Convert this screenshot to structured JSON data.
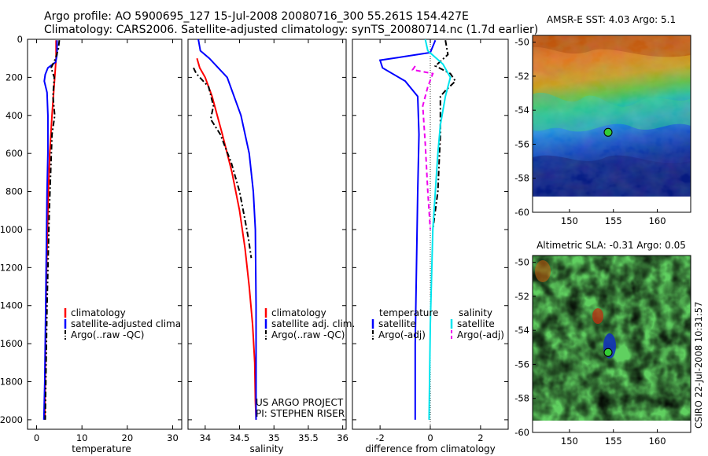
{
  "figure": {
    "title_line1": "Argo profile: AO 5900695_127 15-Jul-2008 20080716_300 55.261S 154.427E",
    "title_line2": "Climatology: CARS2006. Satellite-adjusted climatology: synTS_20080714.nc (1.7d earlier)",
    "credit_line1": "US ARGO PROJECT",
    "credit_line2": "PI: STEPHEN RISER",
    "timestamp": "CSIRO 22-Jul-2008 10:31:57"
  },
  "colors": {
    "climatology": "#ff0000",
    "satellite": "#0000ff",
    "argo": "#000000",
    "satellite_diff": "#00e5ee",
    "argo_adj": "#ee00ee",
    "marker": "#33cc33"
  },
  "chart_data": [
    {
      "type": "line",
      "id": "temperature",
      "xlabel": "temperature",
      "ylabel": "",
      "xlim": [
        -2,
        32
      ],
      "ylim": [
        2050,
        0
      ],
      "xticks": [
        0,
        10,
        20,
        30
      ],
      "yticks": [
        0,
        200,
        400,
        600,
        800,
        1000,
        1200,
        1400,
        1600,
        1800,
        2000
      ],
      "legend": [
        "climatology",
        "satellite-adjusted climatology",
        "Argo(..raw -QC)"
      ],
      "series": [
        {
          "name": "climatology",
          "style": "solid",
          "color": "#ff0000",
          "x": [
            4.3,
            4.3,
            4.0,
            3.4,
            2.9,
            2.6,
            2.4,
            2.2,
            2.0,
            1.9,
            1.8
          ],
          "y": [
            5,
            100,
            200,
            400,
            600,
            800,
            1000,
            1200,
            1500,
            1800,
            2000
          ]
        },
        {
          "name": "satellite-adjusted climatology",
          "style": "solid",
          "color": "#0000ff",
          "x": [
            4.5,
            4.5,
            4.2,
            2.5,
            1.9,
            1.7,
            2.3,
            2.5,
            2.5,
            2.3,
            2.2,
            2.0,
            1.8,
            1.6
          ],
          "y": [
            5,
            80,
            120,
            150,
            185,
            220,
            280,
            400,
            600,
            800,
            1000,
            1400,
            1800,
            2000
          ]
        },
        {
          "name": "Argo(..raw -QC)",
          "style": "dashdot",
          "color": "#000000",
          "x": [
            5.0,
            4.8,
            4.2,
            3.2,
            3.9,
            3.6,
            4.0,
            3.4,
            3.1,
            2.8,
            2.6,
            2.3,
            2.1,
            1.9
          ],
          "y": [
            5,
            50,
            100,
            150,
            200,
            300,
            400,
            500,
            700,
            900,
            1100,
            1400,
            1700,
            2000
          ]
        }
      ]
    },
    {
      "type": "line",
      "id": "salinity",
      "xlabel": "salinity",
      "ylabel": "",
      "xlim": [
        33.75,
        36.05
      ],
      "ylim": [
        2050,
        0
      ],
      "xticks": [
        34,
        34.5,
        35,
        35.5,
        36
      ],
      "xtick_labels": [
        "34",
        "34.5",
        "35",
        "35.5",
        "36"
      ],
      "legend": [
        "climatology",
        "satellite adj. clim.",
        "Argo(..raw -QC)"
      ],
      "series": [
        {
          "name": "climatology",
          "style": "solid",
          "color": "#ff0000",
          "x": [
            33.88,
            33.92,
            34.0,
            34.1,
            34.25,
            34.39,
            34.5,
            34.58,
            34.64,
            34.69,
            34.72,
            34.73,
            34.74
          ],
          "y": [
            100,
            150,
            200,
            300,
            500,
            700,
            900,
            1100,
            1300,
            1500,
            1700,
            1900,
            2000
          ]
        },
        {
          "name": "satellite adj. clim.",
          "style": "solid",
          "color": "#0000ff",
          "x": [
            33.9,
            33.93,
            34.06,
            34.32,
            34.52,
            34.64,
            34.7,
            34.73,
            34.74,
            34.74,
            34.74
          ],
          "y": [
            0,
            60,
            100,
            200,
            400,
            600,
            800,
            1000,
            1400,
            1800,
            2000
          ]
        },
        {
          "name": "Argo(..raw -QC)",
          "style": "dashdot",
          "color": "#000000",
          "x": [
            33.83,
            33.87,
            34.05,
            34.12,
            34.08,
            34.22,
            34.38,
            34.5,
            34.58,
            34.63,
            34.67
          ],
          "y": [
            150,
            180,
            250,
            350,
            420,
            500,
            650,
            800,
            950,
            1050,
            1150
          ]
        }
      ]
    },
    {
      "type": "line",
      "id": "difference",
      "xlabel": "difference from climatology",
      "ylabel": "",
      "xlim": [
        -3.1,
        3.1
      ],
      "ylim": [
        2050,
        0
      ],
      "xticks": [
        -2,
        0,
        2
      ],
      "legend_headers": [
        "temperature",
        "salinity"
      ],
      "legend": [
        "satellite",
        "Argo(-adj)",
        "satellite",
        "Argo(-adj)"
      ],
      "zero_line": true,
      "series": [
        {
          "name": "temperature satellite",
          "style": "solid",
          "color": "#0000ff",
          "x": [
            0.2,
            0.0,
            -1.0,
            -2.0,
            -1.9,
            -1.0,
            -0.5,
            -0.45,
            -0.5,
            -0.55,
            -0.6,
            -0.6
          ],
          "y": [
            5,
            70,
            90,
            110,
            150,
            220,
            300,
            500,
            800,
            1200,
            1600,
            2000
          ]
        },
        {
          "name": "temperature Argo(-adj)",
          "style": "dashdot",
          "color": "#000000",
          "x": [
            0.6,
            0.7,
            0.2,
            0.8,
            1.0,
            0.6,
            0.4,
            0.4,
            0.3,
            0.1
          ],
          "y": [
            5,
            80,
            140,
            180,
            220,
            270,
            300,
            500,
            800,
            1000
          ]
        },
        {
          "name": "salinity satellite",
          "style": "solid",
          "color": "#00e5ee",
          "x": [
            -0.2,
            -0.1,
            0.5,
            0.8,
            0.6,
            0.4,
            0.3,
            0.2,
            0.1,
            0.0,
            -0.05
          ],
          "y": [
            0,
            60,
            130,
            200,
            300,
            450,
            600,
            800,
            1000,
            1500,
            2000
          ]
        },
        {
          "name": "salinity Argo(-adj)",
          "style": "dashed",
          "color": "#ee00ee",
          "x": [
            -0.6,
            -0.7,
            0.1,
            -0.1,
            -0.3,
            -0.2,
            -0.1,
            0.0
          ],
          "y": [
            140,
            160,
            180,
            250,
            350,
            550,
            800,
            1000
          ]
        }
      ]
    },
    {
      "type": "heatmap",
      "id": "amsre-sst",
      "title": "AMSR-E SST: 4.03 Argo: 5.1",
      "xlim": [
        145.8,
        163.8
      ],
      "ylim": [
        -60,
        -49.6
      ],
      "xticks": [
        150,
        155,
        160
      ],
      "yticks": [
        -50,
        -52,
        -54,
        -56,
        -58,
        -60
      ],
      "marker": {
        "lon": 154.4,
        "lat": -55.3
      }
    },
    {
      "type": "heatmap",
      "id": "altimetric-sla",
      "title": "Altimetric SLA: -0.31 Argo: 0.05",
      "xlim": [
        145.8,
        163.8
      ],
      "ylim": [
        -60,
        -49.6
      ],
      "xticks": [
        150,
        155,
        160
      ],
      "yticks": [
        -50,
        -52,
        -54,
        -56,
        -58,
        -60
      ],
      "marker": {
        "lon": 154.4,
        "lat": -55.3
      }
    }
  ]
}
